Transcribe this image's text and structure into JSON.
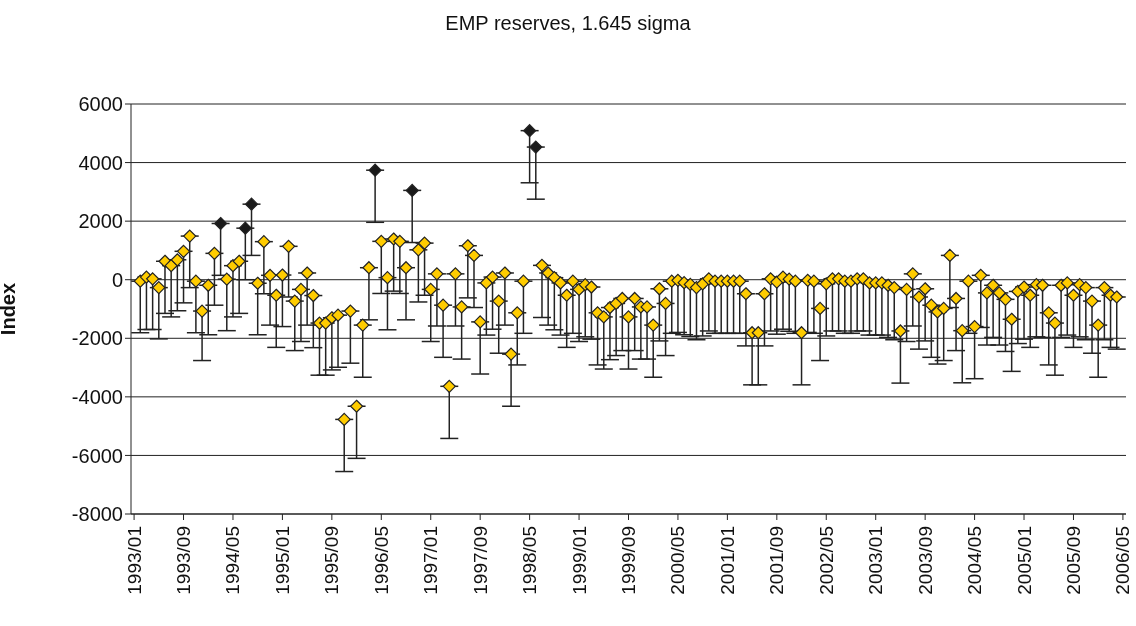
{
  "chart_data": {
    "type": "scatter",
    "title": "EMP reserves, 1.645 sigma",
    "ylabel": "Index",
    "categories": [
      "1993/01",
      null,
      null,
      null,
      null,
      null,
      null,
      null,
      "1993/09",
      null,
      null,
      null,
      null,
      null,
      null,
      null,
      "1994/05",
      null,
      null,
      null,
      null,
      null,
      null,
      null,
      "1995/01",
      null,
      null,
      null,
      null,
      null,
      null,
      null,
      "1995/09",
      null,
      null,
      null,
      null,
      null,
      null,
      null,
      "1996/05",
      null,
      null,
      null,
      null,
      null,
      null,
      null,
      "1997/01",
      null,
      null,
      null,
      null,
      null,
      null,
      null,
      "1997/09",
      null,
      null,
      null,
      null,
      null,
      null,
      null,
      "1998/05",
      null,
      null,
      null,
      null,
      null,
      null,
      null,
      "1999/01",
      null,
      null,
      null,
      null,
      null,
      null,
      null,
      "1999/09",
      null,
      null,
      null,
      null,
      null,
      null,
      null,
      "2000/05",
      null,
      null,
      null,
      null,
      null,
      null,
      null,
      "2001/01",
      null,
      null,
      null,
      null,
      null,
      null,
      null,
      "2001/09",
      null,
      null,
      null,
      null,
      null,
      null,
      null,
      "2002/05",
      null,
      null,
      null,
      null,
      null,
      null,
      null,
      "2003/01",
      null,
      null,
      null,
      null,
      null,
      null,
      null,
      "2003/09",
      null,
      null,
      null,
      null,
      null,
      null,
      null,
      "2004/05",
      null,
      null,
      null,
      null,
      null,
      null,
      null,
      "2005/01",
      null,
      null,
      null,
      null,
      null,
      null,
      null,
      "2005/09",
      null,
      null,
      null,
      null,
      null,
      null,
      null,
      "2006/05"
    ],
    "values": [
      null,
      -50,
      90,
      30,
      -270,
      630,
      480,
      680,
      970,
      1490,
      -50,
      -1070,
      -190,
      900,
      1920,
      20,
      480,
      630,
      1760,
      2580,
      -120,
      1300,
      150,
      -530,
      160,
      1140,
      -730,
      -330,
      230,
      -540,
      -1480,
      -1480,
      -1300,
      -1210,
      -4770,
      -1070,
      -4320,
      -1550,
      410,
      3740,
      1310,
      70,
      1390,
      1310,
      410,
      3050,
      1020,
      1250,
      -330,
      200,
      -870,
      -3640,
      200,
      -930,
      1160,
      830,
      -1440,
      -110,
      90,
      -730,
      230,
      -2540,
      -1130,
      -50,
      5090,
      4530,
      490,
      230,
      70,
      -110,
      -530,
      -50,
      -330,
      -170,
      -250,
      -1130,
      -1270,
      -950,
      -810,
      -640,
      -1270,
      -640,
      -930,
      -930,
      -1550,
      -310,
      -810,
      -50,
      -20,
      -100,
      -160,
      -270,
      -140,
      30,
      -50,
      -50,
      -50,
      -50,
      -50,
      -480,
      -1810,
      -1810,
      -480,
      30,
      -80,
      90,
      20,
      -50,
      -1810,
      -20,
      -50,
      -980,
      -140,
      30,
      30,
      -50,
      -50,
      30,
      30,
      -110,
      -110,
      -110,
      -190,
      -270,
      -1750,
      -330,
      200,
      -590,
      -310,
      -870,
      -1100,
      -980,
      830,
      -640,
      -1740,
      -50,
      -1600,
      150,
      -450,
      -190,
      -450,
      -670,
      -1350,
      -400,
      -250,
      -530,
      -170,
      -190,
      -1130,
      -1480,
      -190,
      -110,
      -530,
      -170,
      -270,
      -730,
      -1550,
      -270,
      -530,
      -590,
      null
    ],
    "errors": [
      null,
      [
        -1810,
        -50
      ],
      [
        -1700,
        90
      ],
      [
        -1700,
        30
      ],
      [
        -2020,
        -270
      ],
      [
        -1150,
        630
      ],
      [
        -1270,
        480
      ],
      [
        -1060,
        680
      ],
      [
        -790,
        970
      ],
      [
        -270,
        1490
      ],
      [
        -1810,
        -50
      ],
      [
        -2760,
        -1070
      ],
      [
        -1880,
        -190
      ],
      [
        -870,
        900
      ],
      [
        150,
        1920
      ],
      [
        -1740,
        20
      ],
      [
        -1270,
        480
      ],
      [
        -1150,
        630
      ],
      [
        0,
        1760
      ],
      [
        830,
        2580
      ],
      [
        -1880,
        -120
      ],
      [
        -480,
        1300
      ],
      [
        -1550,
        150
      ],
      [
        -2310,
        -530
      ],
      [
        -1600,
        160
      ],
      [
        -590,
        1140
      ],
      [
        -2420,
        -730
      ],
      [
        -2110,
        -330
      ],
      [
        -1550,
        230
      ],
      [
        -2320,
        -540
      ],
      [
        -3260,
        -1480
      ],
      [
        -3260,
        -1480
      ],
      [
        -3080,
        -1300
      ],
      [
        -2990,
        -1210
      ],
      [
        -6550,
        -4770
      ],
      [
        -2850,
        -1070
      ],
      [
        -6100,
        -4320
      ],
      [
        -3330,
        -1550
      ],
      [
        -1370,
        410
      ],
      [
        1960,
        3740
      ],
      [
        -470,
        1310
      ],
      [
        -1710,
        70
      ],
      [
        -390,
        1390
      ],
      [
        -470,
        1310
      ],
      [
        -1370,
        410
      ],
      [
        1270,
        3050
      ],
      [
        -760,
        1020
      ],
      [
        -530,
        1250
      ],
      [
        -2110,
        -330
      ],
      [
        -1580,
        200
      ],
      [
        -2650,
        -870
      ],
      [
        -5420,
        -3640
      ],
      [
        -1580,
        200
      ],
      [
        -2710,
        -930
      ],
      [
        -620,
        1160
      ],
      [
        -950,
        830
      ],
      [
        -3220,
        -1440
      ],
      [
        -1890,
        -110
      ],
      [
        -1690,
        90
      ],
      [
        -2510,
        -730
      ],
      [
        -1550,
        230
      ],
      [
        -4320,
        -2540
      ],
      [
        -2910,
        -1130
      ],
      [
        -1830,
        -50
      ],
      [
        3310,
        5090
      ],
      [
        2750,
        4530
      ],
      [
        -1290,
        490
      ],
      [
        -1550,
        230
      ],
      [
        -1710,
        70
      ],
      [
        -1890,
        -110
      ],
      [
        -2310,
        -530
      ],
      [
        -1830,
        -50
      ],
      [
        -2110,
        -330
      ],
      [
        -1950,
        -170
      ],
      [
        -2030,
        -250
      ],
      [
        -2910,
        -1130
      ],
      [
        -3050,
        -1270
      ],
      [
        -2730,
        -950
      ],
      [
        -2590,
        -810
      ],
      [
        -2420,
        -640
      ],
      [
        -3050,
        -1270
      ],
      [
        -2420,
        -640
      ],
      [
        -2710,
        -930
      ],
      [
        -2710,
        -930
      ],
      [
        -3330,
        -1550
      ],
      [
        -2090,
        -310
      ],
      [
        -2590,
        -810
      ],
      [
        -1830,
        -50
      ],
      [
        -1800,
        -20
      ],
      [
        -1880,
        -100
      ],
      [
        -1940,
        -160
      ],
      [
        -2050,
        -270
      ],
      [
        -1920,
        -140
      ],
      [
        -1750,
        30
      ],
      [
        -1830,
        -50
      ],
      [
        -1830,
        -50
      ],
      [
        -1830,
        -50
      ],
      [
        -1830,
        -50
      ],
      [
        -1830,
        -50
      ],
      [
        -2260,
        -480
      ],
      [
        -3590,
        -1810
      ],
      [
        -3590,
        -1810
      ],
      [
        -2260,
        -480
      ],
      [
        -1750,
        30
      ],
      [
        -1860,
        -80
      ],
      [
        -1690,
        90
      ],
      [
        -1760,
        20
      ],
      [
        -1830,
        -50
      ],
      [
        -3590,
        -1810
      ],
      [
        -1800,
        -20
      ],
      [
        -1830,
        -50
      ],
      [
        -2760,
        -980
      ],
      [
        -1920,
        -140
      ],
      [
        -1750,
        30
      ],
      [
        -1750,
        30
      ],
      [
        -1830,
        -50
      ],
      [
        -1830,
        -50
      ],
      [
        -1750,
        30
      ],
      [
        -1750,
        30
      ],
      [
        -1890,
        -110
      ],
      [
        -1890,
        -110
      ],
      [
        -1890,
        -110
      ],
      [
        -1970,
        -190
      ],
      [
        -2050,
        -270
      ],
      [
        -3530,
        -1750
      ],
      [
        -2110,
        -330
      ],
      [
        -1580,
        200
      ],
      [
        -2370,
        -590
      ],
      [
        -2090,
        -310
      ],
      [
        -2650,
        -870
      ],
      [
        -2880,
        -1100
      ],
      [
        -2760,
        -980
      ],
      [
        -950,
        830
      ],
      [
        -2420,
        -640
      ],
      [
        -3520,
        -1740
      ],
      [
        -1830,
        -50
      ],
      [
        -3380,
        -1600
      ],
      [
        -1630,
        150
      ],
      [
        -2230,
        -450
      ],
      [
        -1970,
        -190
      ],
      [
        -2230,
        -450
      ],
      [
        -2450,
        -670
      ],
      [
        -3130,
        -1350
      ],
      [
        -2180,
        -400
      ],
      [
        -2030,
        -250
      ],
      [
        -2310,
        -530
      ],
      [
        -1950,
        -170
      ],
      [
        -1970,
        -190
      ],
      [
        -2910,
        -1130
      ],
      [
        -3260,
        -1480
      ],
      [
        -1970,
        -190
      ],
      [
        -1890,
        -110
      ],
      [
        -2310,
        -530
      ],
      [
        -1950,
        -170
      ],
      [
        -2050,
        -270
      ],
      [
        -2510,
        -730
      ],
      [
        -3330,
        -1550
      ],
      [
        -2050,
        -270
      ],
      [
        -2310,
        -530
      ],
      [
        -2370,
        -590
      ],
      null
    ],
    "colors": [
      null,
      "#ffcc00",
      "#ffcc00",
      "#ffcc00",
      "#ffcc00",
      "#ffcc00",
      "#ffcc00",
      "#ffcc00",
      "#ffcc00",
      "#ffcc00",
      "#ffcc00",
      "#ffcc00",
      "#ffcc00",
      "#ffcc00",
      "#1a1a1a",
      "#ffcc00",
      "#ffcc00",
      "#ffcc00",
      "#1a1a1a",
      "#1a1a1a",
      "#ffcc00",
      "#ffcc00",
      "#ffcc00",
      "#ffcc00",
      "#ffcc00",
      "#ffcc00",
      "#ffcc00",
      "#ffcc00",
      "#ffcc00",
      "#ffcc00",
      "#ffcc00",
      "#ffcc00",
      "#ffcc00",
      "#ffcc00",
      "#ffcc00",
      "#ffcc00",
      "#ffcc00",
      "#ffcc00",
      "#ffcc00",
      "#1a1a1a",
      "#ffcc00",
      "#ffcc00",
      "#ffcc00",
      "#ffcc00",
      "#ffcc00",
      "#1a1a1a",
      "#ffcc00",
      "#ffcc00",
      "#ffcc00",
      "#ffcc00",
      "#ffcc00",
      "#ffcc00",
      "#ffcc00",
      "#ffcc00",
      "#ffcc00",
      "#ffcc00",
      "#ffcc00",
      "#ffcc00",
      "#ffcc00",
      "#ffcc00",
      "#ffcc00",
      "#ffcc00",
      "#ffcc00",
      "#ffcc00",
      "#1a1a1a",
      "#1a1a1a",
      "#ffcc00",
      "#ffcc00",
      "#ffcc00",
      "#ffcc00",
      "#ffcc00",
      "#ffcc00",
      "#ffcc00",
      "#ffcc00",
      "#ffcc00",
      "#ffcc00",
      "#ffcc00",
      "#ffcc00",
      "#ffcc00",
      "#ffcc00",
      "#ffcc00",
      "#ffcc00",
      "#ffcc00",
      "#ffcc00",
      "#ffcc00",
      "#ffcc00",
      "#ffcc00",
      "#ffcc00",
      "#ffcc00",
      "#ffcc00",
      "#ffcc00",
      "#ffcc00",
      "#ffcc00",
      "#ffcc00",
      "#ffcc00",
      "#ffcc00",
      "#ffcc00",
      "#ffcc00",
      "#ffcc00",
      "#ffcc00",
      "#ffcc00",
      "#ffcc00",
      "#ffcc00",
      "#ffcc00",
      "#ffcc00",
      "#ffcc00",
      "#ffcc00",
      "#ffcc00",
      "#ffcc00",
      "#ffcc00",
      "#ffcc00",
      "#ffcc00",
      "#ffcc00",
      "#ffcc00",
      "#ffcc00",
      "#ffcc00",
      "#ffcc00",
      "#ffcc00",
      "#ffcc00",
      "#ffcc00",
      "#ffcc00",
      "#ffcc00",
      "#ffcc00",
      "#ffcc00",
      "#ffcc00",
      "#ffcc00",
      "#ffcc00",
      "#ffcc00",
      "#ffcc00",
      "#ffcc00",
      "#ffcc00",
      "#ffcc00",
      "#ffcc00",
      "#ffcc00",
      "#ffcc00",
      "#ffcc00",
      "#ffcc00",
      "#ffcc00",
      "#ffcc00",
      "#ffcc00",
      "#ffcc00",
      "#ffcc00",
      "#ffcc00",
      "#ffcc00",
      "#ffcc00",
      "#ffcc00",
      "#ffcc00",
      "#ffcc00",
      "#ffcc00",
      "#ffcc00",
      "#ffcc00",
      "#ffcc00",
      "#ffcc00",
      "#ffcc00",
      "#ffcc00",
      "#ffcc00",
      "#ffcc00",
      "#ffcc00",
      "#ffcc00",
      "#ffcc00",
      null
    ],
    "ylim": [
      -8000,
      6000
    ],
    "yticks": [
      -8000,
      -6000,
      -4000,
      -2000,
      0,
      2000,
      4000,
      6000
    ],
    "grid": "y",
    "marker": "diamond"
  }
}
